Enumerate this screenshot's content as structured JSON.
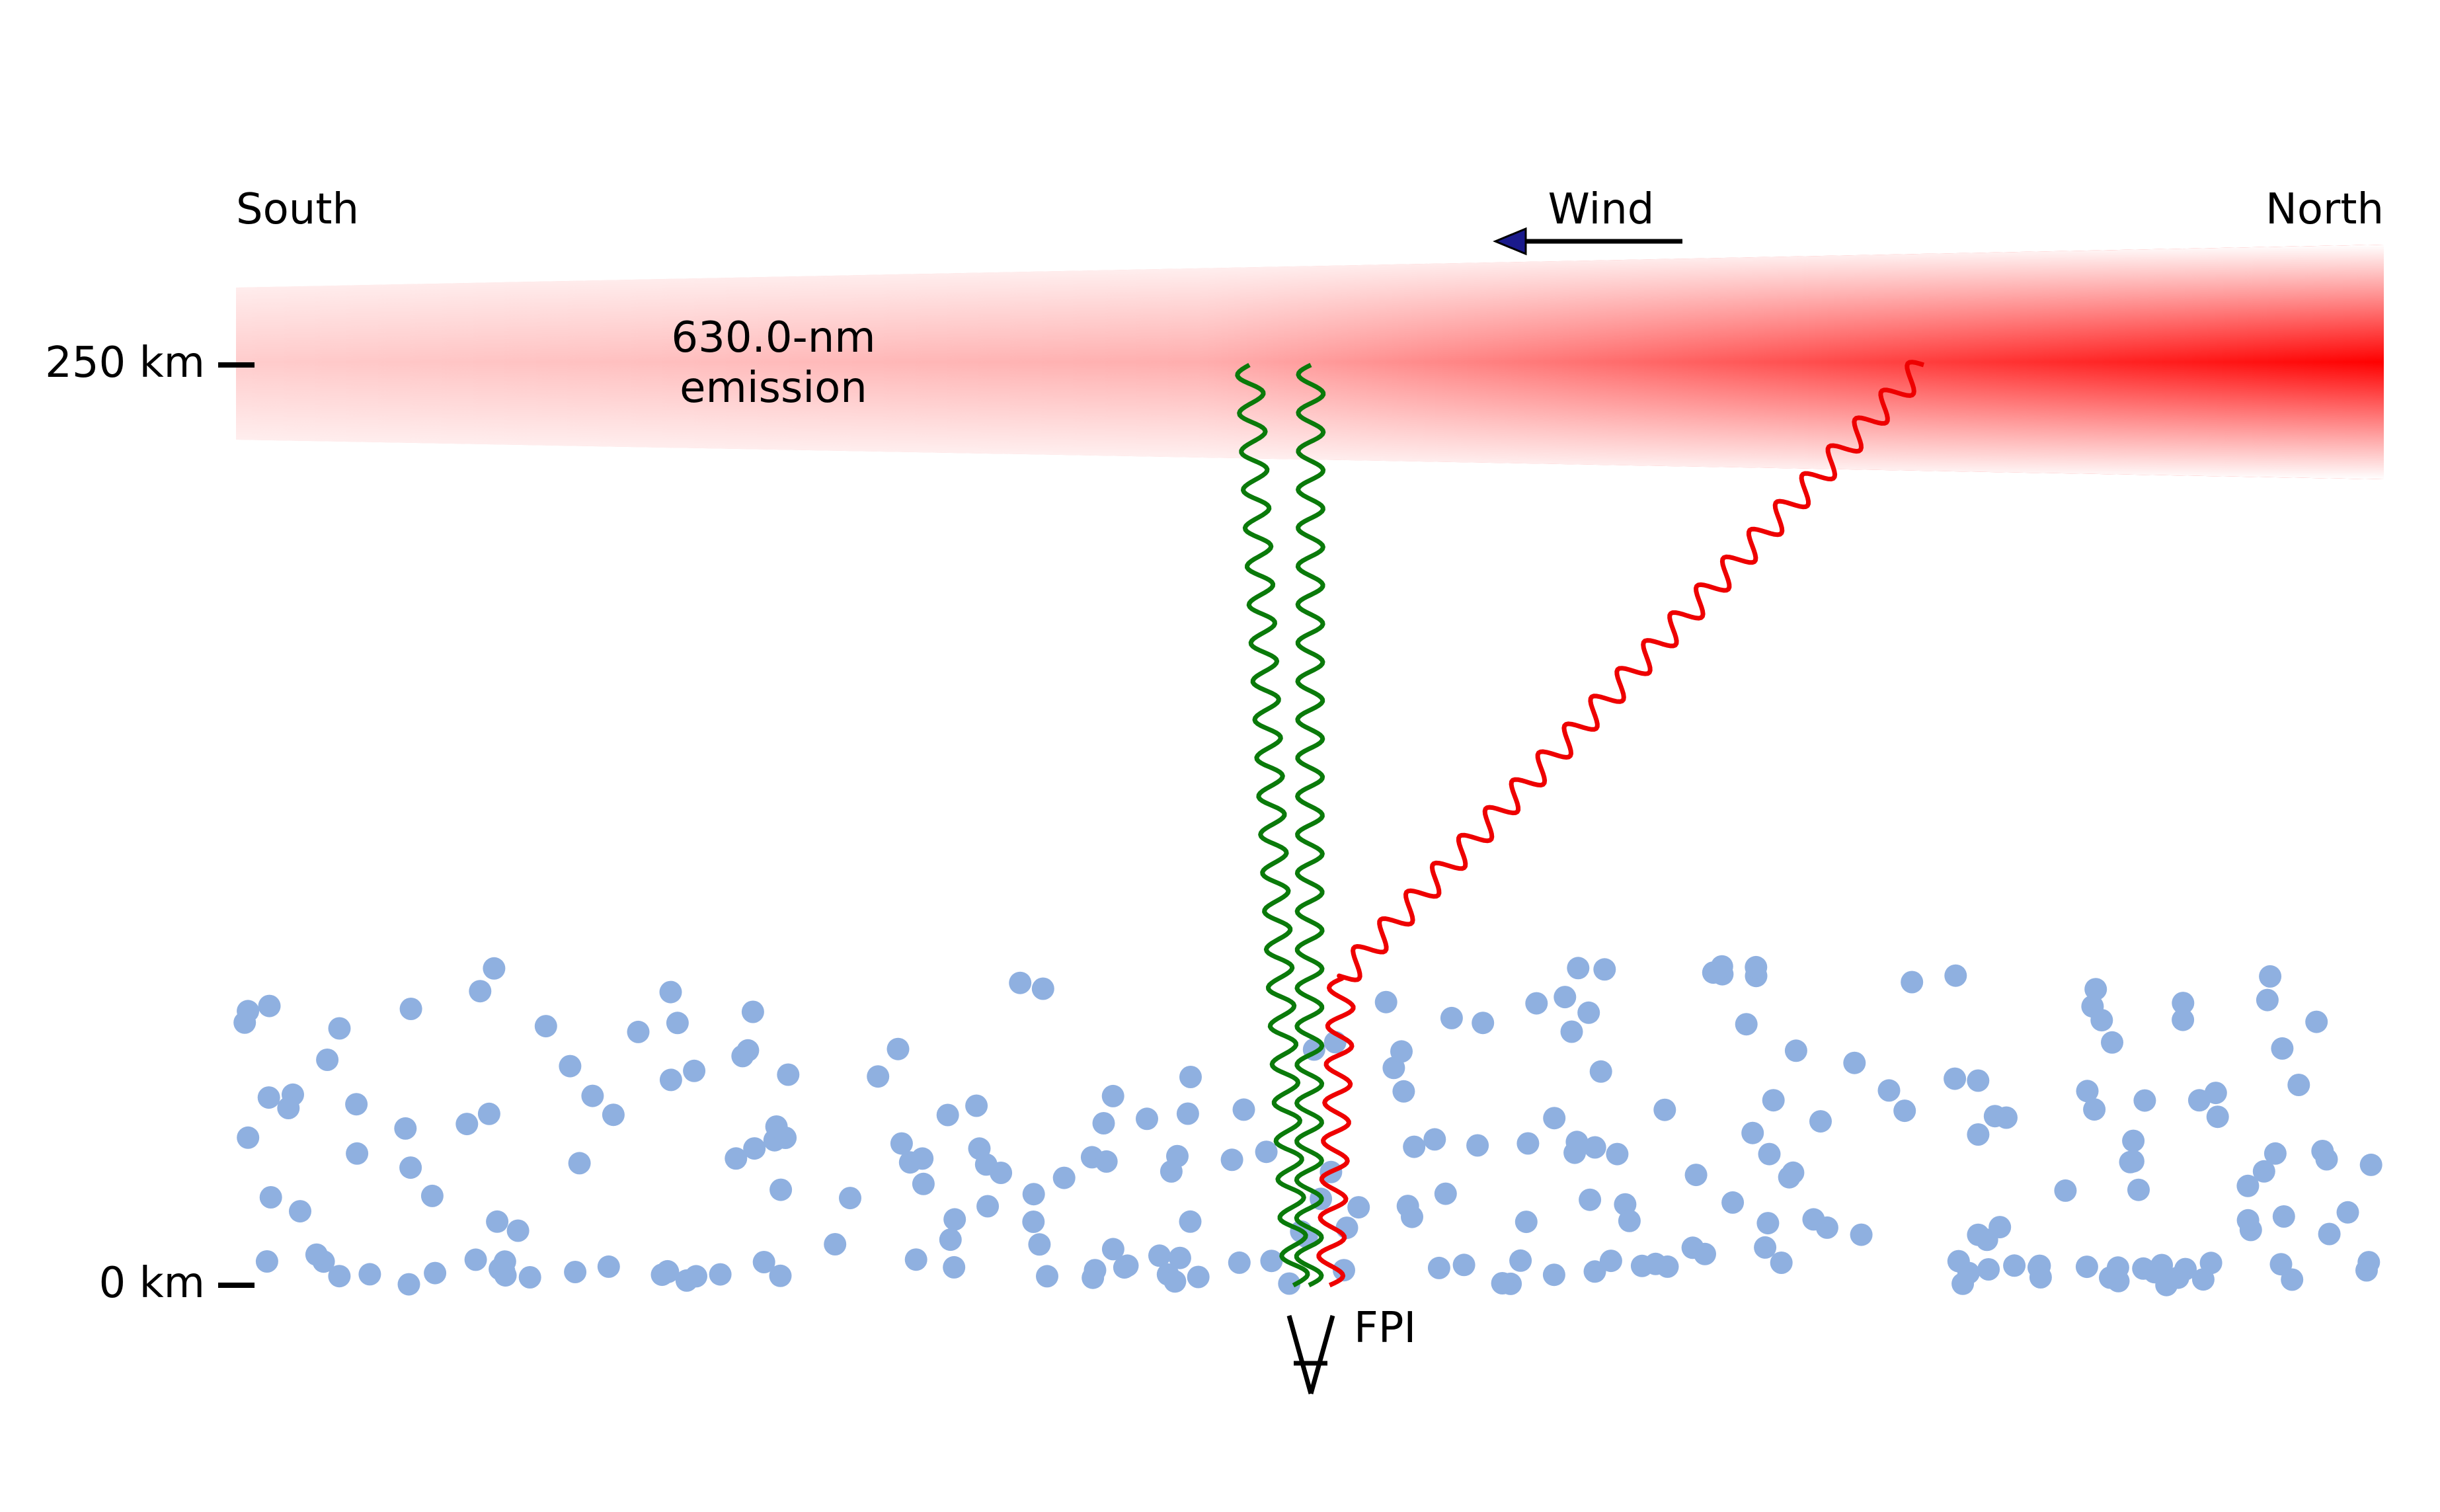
{
  "labels": {
    "south": "South",
    "north": "North",
    "wind": "Wind",
    "emission_line1": "630.0-nm",
    "emission_line2": "emission",
    "instrument": "FPI"
  },
  "altitude_ticks": [
    {
      "label": "250 km",
      "altitude_km": 250
    },
    {
      "label": "0 km",
      "altitude_km": 0
    }
  ],
  "colors": {
    "emission": "#ff0000",
    "green_ray": "#0a7a0a",
    "red_ray": "#ee0000",
    "scatter_dots": "#8fb0e0",
    "wind_arrow_head": "#1a1a8c",
    "ink": "#000000"
  },
  "icons": {
    "instrument": "fpi-telescope-icon",
    "wind_arrow": "arrow-left-icon"
  }
}
